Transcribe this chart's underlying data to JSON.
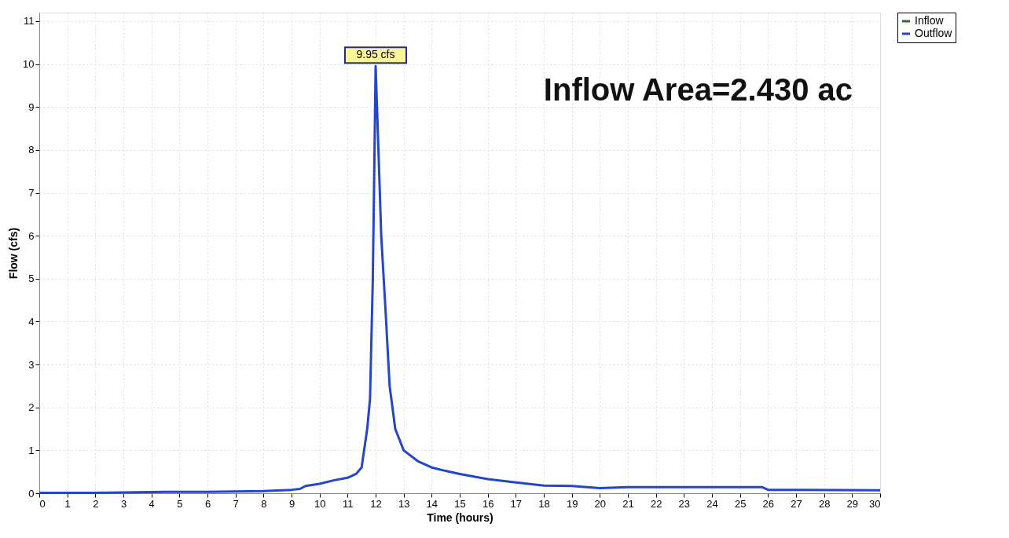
{
  "chart_data": {
    "type": "line",
    "xlabel": "Time  (hours)",
    "ylabel": "Flow  (cfs)",
    "x": [
      0,
      2,
      4.5,
      6,
      8,
      9,
      9.3,
      9.5,
      10,
      10.5,
      11,
      11.3,
      11.5,
      11.7,
      11.8,
      11.9,
      12.0,
      12.1,
      12.2,
      12.35,
      12.5,
      12.7,
      13,
      13.5,
      14,
      14.5,
      15,
      16,
      17,
      18,
      19,
      20,
      21,
      25.8,
      26,
      30
    ],
    "series": [
      {
        "name": "Inflow",
        "color": "#2f6b3a",
        "values": [
          null,
          null,
          null,
          null,
          null,
          null,
          null,
          null,
          null,
          null,
          null,
          null,
          null,
          null,
          null,
          null,
          null,
          null,
          null,
          null,
          null,
          null,
          null,
          null,
          null,
          null,
          null,
          null,
          null,
          null,
          null,
          null,
          null,
          null,
          null,
          null
        ]
      },
      {
        "name": "Outflow",
        "color": "#2446c8",
        "values": [
          0.01,
          0.01,
          0.03,
          0.03,
          0.05,
          0.08,
          0.1,
          0.17,
          0.22,
          0.3,
          0.36,
          0.45,
          0.6,
          1.5,
          2.2,
          5,
          9.95,
          8,
          6,
          4.3,
          2.5,
          1.5,
          1.0,
          0.75,
          0.6,
          0.52,
          0.45,
          0.33,
          0.25,
          0.18,
          0.17,
          0.12,
          0.14,
          0.14,
          0.08,
          0.07
        ]
      }
    ],
    "xlim": [
      0,
      30
    ],
    "xticks": [
      0,
      1,
      2,
      3,
      4,
      5,
      6,
      7,
      8,
      9,
      10,
      11,
      12,
      13,
      14,
      15,
      16,
      17,
      18,
      19,
      20,
      21,
      22,
      23,
      24,
      25,
      26,
      27,
      28,
      29,
      30
    ],
    "ylim": [
      0,
      11.2
    ],
    "yticks": [
      0,
      1,
      2,
      3,
      4,
      5,
      6,
      7,
      8,
      9,
      10,
      11
    ],
    "annotations": [
      {
        "text": "9.95 cfs",
        "x": 12,
        "y": 9.95
      },
      "Inflow Area=2.430 ac"
    ],
    "grid": true,
    "legend": "top right",
    "marker": "none",
    "line_style": "solid"
  }
}
